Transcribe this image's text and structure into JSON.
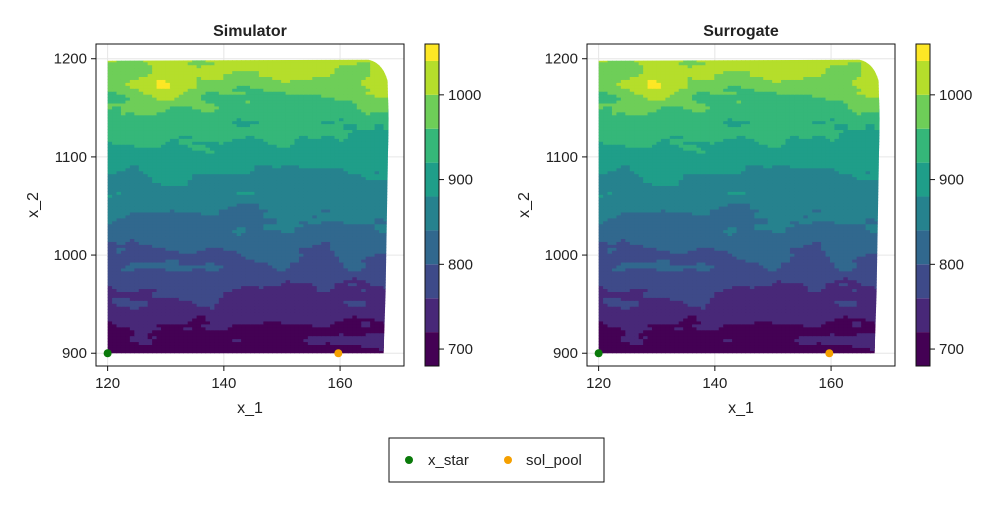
{
  "chart_data": {
    "type": "contour",
    "colormap": [
      "#440154",
      "#482878",
      "#3e4a89",
      "#31688e",
      "#26828e",
      "#1f9e89",
      "#35b779",
      "#6ece58",
      "#b5de2b",
      "#fde725"
    ],
    "levels": [
      680,
      720,
      760,
      800,
      840,
      880,
      920,
      960,
      1000,
      1040,
      1060
    ],
    "colorbar": {
      "min": 680,
      "max": 1060,
      "ticks": [
        700,
        800,
        900,
        1000
      ],
      "tick_labels": [
        "700",
        "800",
        "900",
        "1000"
      ]
    },
    "xlim": [
      118,
      171
    ],
    "ylim": [
      887,
      1215
    ],
    "xticks": [
      120,
      140,
      160
    ],
    "xtick_labels": [
      "120",
      "140",
      "160"
    ],
    "yticks": [
      900,
      1000,
      1100,
      1200
    ],
    "ytick_labels": [
      "900",
      "1000",
      "1100",
      "1200"
    ],
    "domain": {
      "x": [
        120,
        168
      ],
      "y": [
        900,
        1200
      ]
    },
    "grid": true,
    "panels": [
      {
        "title": "Simulator",
        "xlabel": "x_1",
        "ylabel": "x_2"
      },
      {
        "title": "Surrogate",
        "xlabel": "x_1",
        "ylabel": "x_2"
      }
    ],
    "series": [
      {
        "name": "x_star",
        "type": "scatter",
        "color": "#0a7a0a",
        "x": [
          120
        ],
        "y": [
          900
        ]
      },
      {
        "name": "sol_pool",
        "type": "scatter",
        "color": "#f5a000",
        "x": [
          159.7
        ],
        "y": [
          900
        ]
      }
    ],
    "legend": {
      "position": "bottom-center"
    }
  }
}
